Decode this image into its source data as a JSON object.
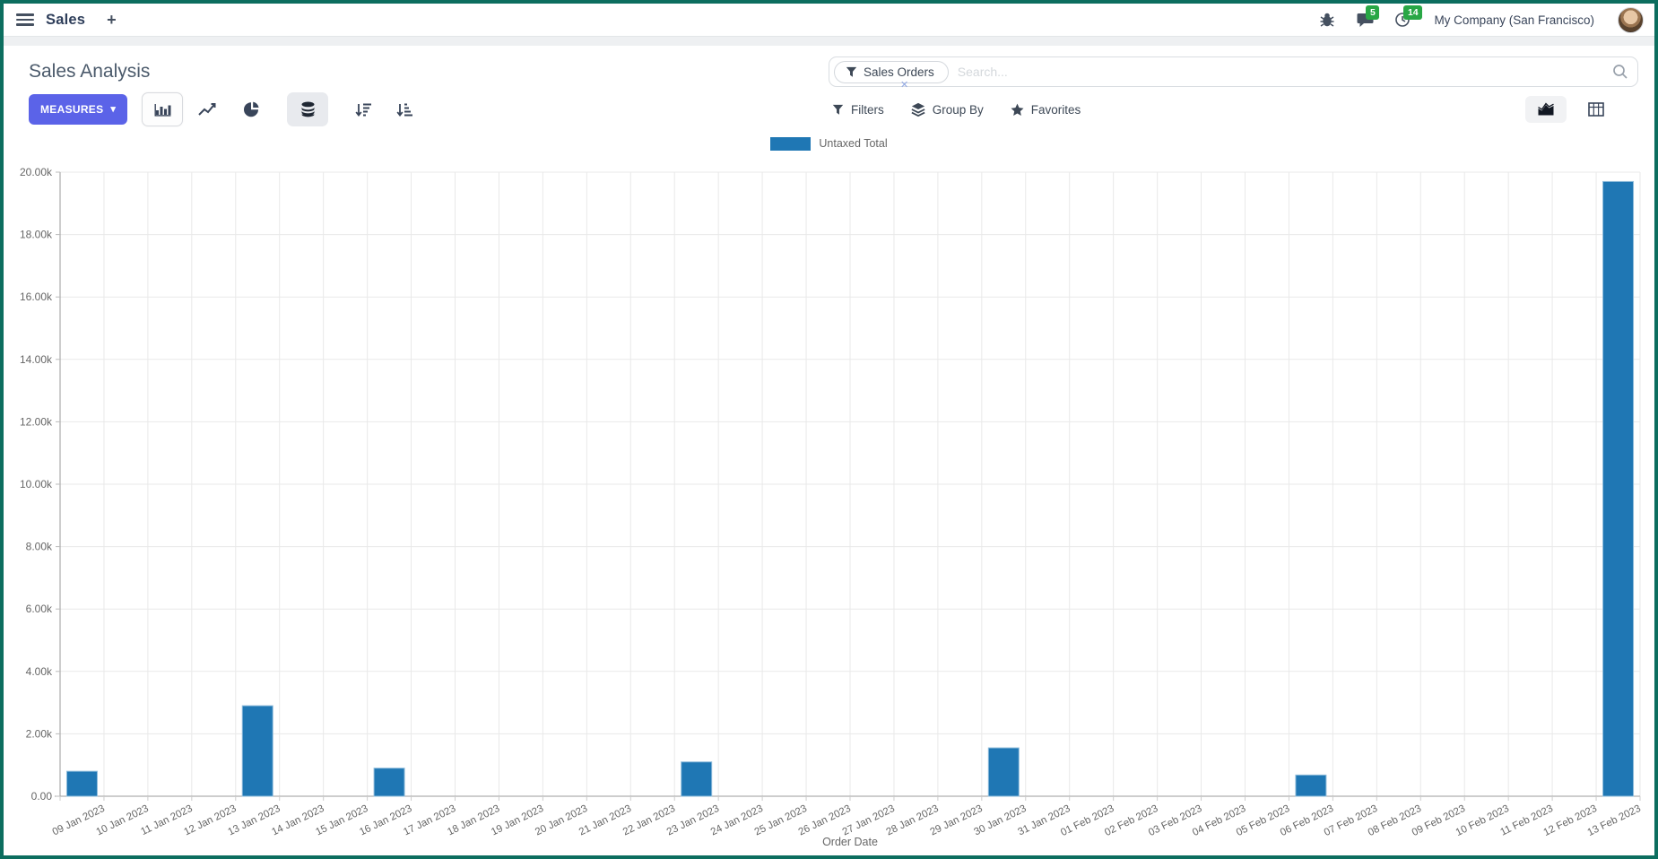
{
  "frame_color": "#0c6e5f",
  "navbar": {
    "brand": "Sales",
    "messages_badge": "5",
    "activities_badge": "14",
    "company": "My Company (San Francisco)",
    "badge_color": "#28a745"
  },
  "icons": {
    "plus": "+",
    "measures_caret": "▾",
    "facet_remove": "✕"
  },
  "control_panel": {
    "title": "Sales Analysis",
    "measures_label": "MEASURES",
    "search": {
      "facet": "Sales Orders",
      "placeholder": "Search..."
    },
    "filters_label": "Filters",
    "groupby_label": "Group By",
    "favorites_label": "Favorites"
  },
  "chart_data": {
    "type": "bar",
    "title": "",
    "legend": [
      "Untaxed Total"
    ],
    "legend_position": "top",
    "series_color": "#1f77b4",
    "grid": true,
    "xlabel": "Order Date",
    "ylabel": "",
    "ylim": [
      0,
      20000
    ],
    "ytick_step": 2000,
    "ytick_labels": [
      "0.00",
      "2.00k",
      "4.00k",
      "6.00k",
      "8.00k",
      "10.00k",
      "12.00k",
      "14.00k",
      "16.00k",
      "18.00k",
      "20.00k"
    ],
    "categories": [
      "09 Jan 2023",
      "10 Jan 2023",
      "11 Jan 2023",
      "12 Jan 2023",
      "13 Jan 2023",
      "14 Jan 2023",
      "15 Jan 2023",
      "16 Jan 2023",
      "17 Jan 2023",
      "18 Jan 2023",
      "19 Jan 2023",
      "20 Jan 2023",
      "21 Jan 2023",
      "22 Jan 2023",
      "23 Jan 2023",
      "24 Jan 2023",
      "25 Jan 2023",
      "26 Jan 2023",
      "27 Jan 2023",
      "28 Jan 2023",
      "29 Jan 2023",
      "30 Jan 2023",
      "31 Jan 2023",
      "01 Feb 2023",
      "02 Feb 2023",
      "03 Feb 2023",
      "04 Feb 2023",
      "05 Feb 2023",
      "06 Feb 2023",
      "07 Feb 2023",
      "08 Feb 2023",
      "09 Feb 2023",
      "10 Feb 2023",
      "11 Feb 2023",
      "12 Feb 2023",
      "13 Feb 2023"
    ],
    "values": [
      800,
      0,
      0,
      0,
      2900,
      0,
      0,
      900,
      0,
      0,
      0,
      0,
      0,
      0,
      1100,
      0,
      0,
      0,
      0,
      0,
      0,
      1550,
      0,
      0,
      0,
      0,
      0,
      0,
      680,
      0,
      0,
      0,
      0,
      0,
      0,
      19700
    ]
  }
}
